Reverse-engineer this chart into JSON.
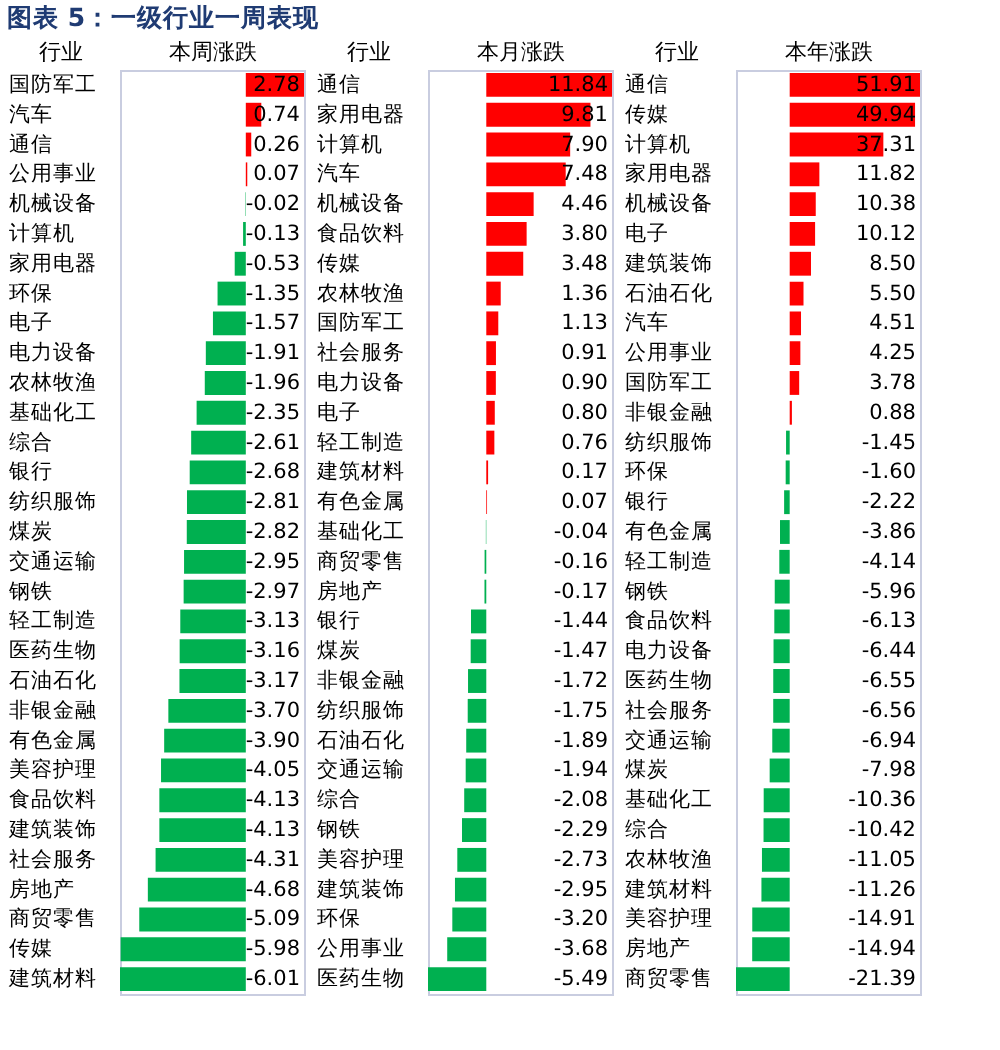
{
  "chart_data": [
    {
      "type": "bar",
      "orientation": "horizontal",
      "title": "图表 5：一级行业一周表现",
      "xlabel": "本周涨跌",
      "ylabel": "行业",
      "tick_labels": "y",
      "value_labels": [
        "2.78",
        "0.74",
        "0.26",
        "0.07",
        "-0.02",
        "-0.13",
        "-0.53",
        "-1.35",
        "-1.57",
        "-1.91",
        "-1.96",
        "-2.35",
        "-2.61",
        "-2.68",
        "-2.81",
        "-2.82",
        "-2.95",
        "-2.97",
        "-3.13",
        "-3.16",
        "-3.17",
        "-3.70",
        "-3.90",
        "-4.05",
        "-4.13",
        "-4.13",
        "-4.31",
        "-4.68",
        "-5.09",
        "-5.98",
        "-6.01"
      ],
      "categories": [
        "国防军工",
        "汽车",
        "通信",
        "公用事业",
        "机械设备",
        "计算机",
        "家用电器",
        "环保",
        "电子",
        "电力设备",
        "农林牧渔",
        "基础化工",
        "综合",
        "银行",
        "纺织服饰",
        "煤炭",
        "交通运输",
        "钢铁",
        "轻工制造",
        "医药生物",
        "石油石化",
        "非银金融",
        "有色金属",
        "美容护理",
        "食品饮料",
        "建筑装饰",
        "社会服务",
        "房地产",
        "商贸零售",
        "传媒",
        "建筑材料"
      ],
      "values": [
        2.78,
        0.74,
        0.26,
        0.07,
        -0.02,
        -0.13,
        -0.53,
        -1.35,
        -1.57,
        -1.91,
        -1.96,
        -2.35,
        -2.61,
        -2.68,
        -2.81,
        -2.82,
        -2.95,
        -2.97,
        -3.13,
        -3.16,
        -3.17,
        -3.7,
        -3.9,
        -4.05,
        -4.13,
        -4.13,
        -4.31,
        -4.68,
        -5.09,
        -5.98,
        -6.01
      ],
      "colors": [
        "#ff0000",
        "#ff0000",
        "#ff0000",
        "#ff0000",
        "#00b050",
        "#00b050",
        "#00b050",
        "#00b050",
        "#00b050",
        "#00b050",
        "#00b050",
        "#00b050",
        "#00b050",
        "#00b050",
        "#00b050",
        "#00b050",
        "#00b050",
        "#00b050",
        "#00b050",
        "#00b050",
        "#00b050",
        "#00b050",
        "#00b050",
        "#00b050",
        "#00b050",
        "#00b050",
        "#00b050",
        "#00b050",
        "#00b050",
        "#00b050",
        "#00b050"
      ]
    },
    {
      "type": "bar",
      "orientation": "horizontal",
      "xlabel": "本月涨跌",
      "ylabel": "行业",
      "tick_labels": "y",
      "value_labels": [
        "11.84",
        "9.81",
        "7.90",
        "7.48",
        "4.46",
        "3.80",
        "3.48",
        "1.36",
        "1.13",
        "0.91",
        "0.90",
        "0.80",
        "0.76",
        "0.17",
        "0.07",
        "-0.04",
        "-0.16",
        "-0.17",
        "-1.44",
        "-1.47",
        "-1.72",
        "-1.75",
        "-1.89",
        "-1.94",
        "-2.08",
        "-2.29",
        "-2.73",
        "-2.95",
        "-3.20",
        "-3.68",
        "-5.49"
      ],
      "categories": [
        "通信",
        "家用电器",
        "计算机",
        "汽车",
        "机械设备",
        "食品饮料",
        "传媒",
        "农林牧渔",
        "国防军工",
        "社会服务",
        "电力设备",
        "电子",
        "轻工制造",
        "建筑材料",
        "有色金属",
        "基础化工",
        "商贸零售",
        "房地产",
        "银行",
        "煤炭",
        "非银金融",
        "纺织服饰",
        "石油石化",
        "交通运输",
        "综合",
        "钢铁",
        "美容护理",
        "建筑装饰",
        "环保",
        "公用事业",
        "医药生物"
      ],
      "values": [
        11.84,
        9.81,
        7.9,
        7.48,
        4.46,
        3.8,
        3.48,
        1.36,
        1.13,
        0.91,
        0.9,
        0.8,
        0.76,
        0.17,
        0.07,
        -0.04,
        -0.16,
        -0.17,
        -1.44,
        -1.47,
        -1.72,
        -1.75,
        -1.89,
        -1.94,
        -2.08,
        -2.29,
        -2.73,
        -2.95,
        -3.2,
        -3.68,
        -5.49
      ],
      "colors": [
        "#ff0000",
        "#ff0000",
        "#ff0000",
        "#ff0000",
        "#ff0000",
        "#ff0000",
        "#ff0000",
        "#ff0000",
        "#ff0000",
        "#ff0000",
        "#ff0000",
        "#ff0000",
        "#ff0000",
        "#ff0000",
        "#ff0000",
        "#00b050",
        "#00b050",
        "#00b050",
        "#00b050",
        "#00b050",
        "#00b050",
        "#00b050",
        "#00b050",
        "#00b050",
        "#00b050",
        "#00b050",
        "#00b050",
        "#00b050",
        "#00b050",
        "#00b050",
        "#00b050"
      ]
    },
    {
      "type": "bar",
      "orientation": "horizontal",
      "xlabel": "本年涨跌",
      "ylabel": "行业",
      "tick_labels": "y",
      "value_labels": [
        "51.91",
        "49.94",
        "37.31",
        "11.82",
        "10.38",
        "10.12",
        "8.50",
        "5.50",
        "4.51",
        "4.25",
        "3.78",
        "0.88",
        "-1.45",
        "-1.60",
        "-2.22",
        "-3.86",
        "-4.14",
        "-5.96",
        "-6.13",
        "-6.44",
        "-6.55",
        "-6.56",
        "-6.94",
        "-7.98",
        "-10.36",
        "-10.42",
        "-11.05",
        "-11.26",
        "-14.91",
        "-14.94",
        "-21.39"
      ],
      "categories": [
        "通信",
        "传媒",
        "计算机",
        "家用电器",
        "机械设备",
        "电子",
        "建筑装饰",
        "石油石化",
        "汽车",
        "公用事业",
        "国防军工",
        "非银金融",
        "纺织服饰",
        "环保",
        "银行",
        "有色金属",
        "轻工制造",
        "钢铁",
        "食品饮料",
        "电力设备",
        "医药生物",
        "社会服务",
        "交通运输",
        "煤炭",
        "基础化工",
        "综合",
        "农林牧渔",
        "建筑材料",
        "美容护理",
        "房地产",
        "商贸零售"
      ],
      "values": [
        51.91,
        49.94,
        37.31,
        11.82,
        10.38,
        10.12,
        8.5,
        5.5,
        4.51,
        4.25,
        3.78,
        0.88,
        -1.45,
        -1.6,
        -2.22,
        -3.86,
        -4.14,
        -5.96,
        -6.13,
        -6.44,
        -6.55,
        -6.56,
        -6.94,
        -7.98,
        -10.36,
        -10.42,
        -11.05,
        -11.26,
        -14.91,
        -14.94,
        -21.39
      ],
      "colors": [
        "#ff0000",
        "#ff0000",
        "#ff0000",
        "#ff0000",
        "#ff0000",
        "#ff0000",
        "#ff0000",
        "#ff0000",
        "#ff0000",
        "#ff0000",
        "#ff0000",
        "#ff0000",
        "#00b050",
        "#00b050",
        "#00b050",
        "#00b050",
        "#00b050",
        "#00b050",
        "#00b050",
        "#00b050",
        "#00b050",
        "#00b050",
        "#00b050",
        "#00b050",
        "#00b050",
        "#00b050",
        "#00b050",
        "#00b050",
        "#00b050",
        "#00b050",
        "#00b050"
      ]
    }
  ]
}
